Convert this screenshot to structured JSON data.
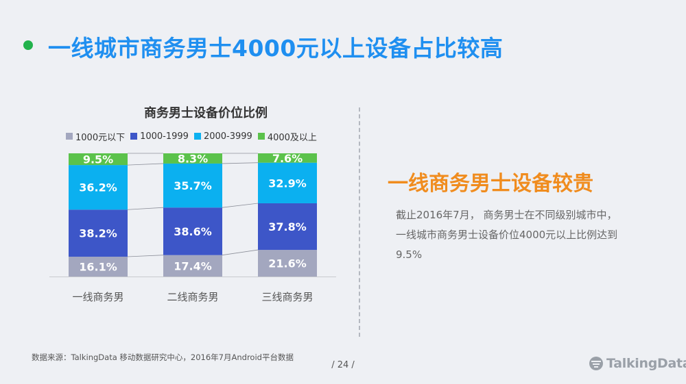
{
  "header": {
    "title": "一线城市商务男士4000元以上设备占比较高",
    "title_color": "#1f8ff0",
    "dot_color": "#22b24c"
  },
  "side": {
    "heading": "一线商务男士设备较贵",
    "heading_color": "#f08c1e",
    "lines": [
      "截止2016年7月，  商务男士在不同级别城市中，",
      "一线城市商务男士设备价位4000元以上比例达到",
      "9.5%"
    ]
  },
  "footer": {
    "source": "数据来源：TalkingData 移动数据研究中心，2016年7月Android平台数据",
    "page_number": "/  24  /",
    "brand": "TalkingData"
  },
  "chart_data": {
    "type": "bar",
    "stacked": true,
    "normalized": true,
    "title": "商务男士设备价位比例",
    "categories": [
      "一线商务男",
      "二线商务男",
      "三线商务男"
    ],
    "series": [
      {
        "name": "1000元以下",
        "color": "#a3a7bf",
        "values": [
          16.1,
          17.4,
          21.6
        ],
        "labels": [
          "16.1%",
          "17.4%",
          "21.6%"
        ]
      },
      {
        "name": "1000-1999",
        "color": "#3d56c8",
        "values": [
          38.2,
          38.6,
          37.8
        ],
        "labels": [
          "38.2%",
          "38.6%",
          "37.8%"
        ]
      },
      {
        "name": "2000-3999",
        "color": "#0bb0f0",
        "values": [
          36.2,
          35.7,
          32.9
        ],
        "labels": [
          "36.2%",
          "35.7%",
          "32.9%"
        ]
      },
      {
        "name": "4000及以上",
        "color": "#5bc24b",
        "values": [
          9.5,
          8.3,
          7.6
        ],
        "labels": [
          "9.5%",
          "8.3%",
          "7.6%"
        ]
      }
    ],
    "legend_position": "top",
    "connector_lines": true,
    "grid": false
  }
}
